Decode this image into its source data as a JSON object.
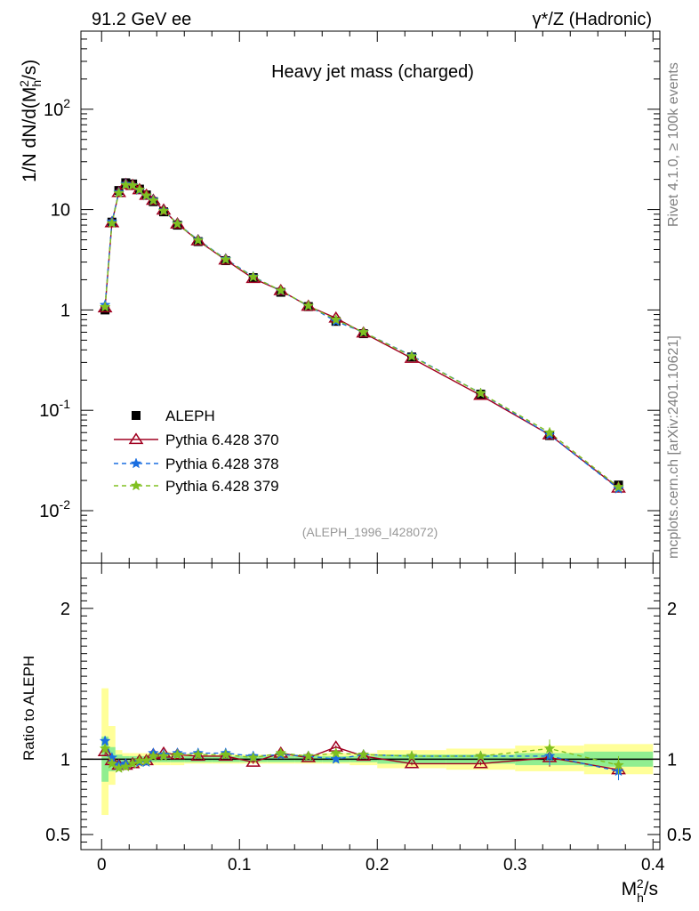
{
  "header": {
    "left": "91.2 GeV ee",
    "right": "γ*/Z (Hadronic)"
  },
  "side_labels": {
    "rivet": "Rivet 4.1.0, ≥ 100k events",
    "mcplots": "mcplots.cern.ch [arXiv:2401.10621]"
  },
  "colors": {
    "aleph": "#000000",
    "p370": "#a00020",
    "p378": "#1a6ee0",
    "p379": "#80c020",
    "band_yellow": "#ffff99",
    "band_green": "#90ee90"
  },
  "chart_data": {
    "type": "line",
    "title": "Heavy jet mass (charged)",
    "ylabel": "1/N  dN/d(M_h^2/s)",
    "xlabel": "M_h^2/s",
    "ratio_ylabel": "Ratio to ALEPH",
    "watermark": "(ALEPH_1996_I428072)",
    "xlim": [
      -0.015,
      0.405
    ],
    "ylim_log": [
      0.003,
      600
    ],
    "ratio_ylim": [
      0.4,
      2.3
    ],
    "x_ticks": [
      "0",
      "0.1",
      "0.2",
      "0.3",
      "0.4"
    ],
    "y_tick_labels": [
      "10^-2",
      "10^-1",
      "1",
      "10",
      "10^2"
    ],
    "ratio_tick_labels": [
      "0.5",
      "1",
      "2"
    ],
    "x": [
      0.0025,
      0.0075,
      0.0125,
      0.0175,
      0.0225,
      0.0275,
      0.0325,
      0.0375,
      0.045,
      0.055,
      0.07,
      0.09,
      0.11,
      0.13,
      0.15,
      0.17,
      0.19,
      0.225,
      0.275,
      0.325,
      0.375
    ],
    "series": [
      {
        "name": "ALEPH",
        "style": "data",
        "values": [
          1.0,
          7.5,
          15.5,
          18.5,
          18.0,
          16.0,
          14.0,
          12.0,
          9.5,
          7.0,
          4.8,
          3.1,
          2.1,
          1.5,
          1.08,
          0.77,
          0.58,
          0.34,
          0.145,
          0.056,
          0.018
        ]
      },
      {
        "name": "Pythia 6.428 370",
        "style": "triangle",
        "values": [
          1.05,
          7.4,
          14.8,
          17.8,
          17.4,
          15.8,
          13.9,
          12.4,
          9.9,
          7.2,
          4.9,
          3.15,
          2.06,
          1.56,
          1.09,
          0.83,
          0.59,
          0.33,
          0.141,
          0.057,
          0.0168
        ]
      },
      {
        "name": "Pythia 6.428 378",
        "style": "star-dashed",
        "values": [
          1.12,
          7.6,
          14.9,
          18.0,
          17.5,
          15.6,
          13.7,
          12.5,
          9.8,
          7.25,
          5.0,
          3.22,
          2.15,
          1.55,
          1.1,
          0.77,
          0.6,
          0.35,
          0.148,
          0.057,
          0.0165
        ]
      },
      {
        "name": "Pythia 6.428 379",
        "style": "star-dashed",
        "values": [
          1.07,
          7.3,
          14.6,
          17.6,
          17.4,
          15.8,
          13.8,
          12.3,
          9.7,
          7.2,
          4.95,
          3.18,
          2.13,
          1.56,
          1.1,
          0.8,
          0.6,
          0.345,
          0.148,
          0.06,
          0.0172
        ]
      }
    ],
    "ratio_series": [
      {
        "name": "Pythia 6.428 370",
        "values": [
          1.05,
          0.99,
          0.96,
          0.96,
          0.97,
          0.99,
          0.99,
          1.03,
          1.04,
          1.03,
          1.02,
          1.02,
          0.98,
          1.04,
          1.01,
          1.08,
          1.02,
          0.97,
          0.97,
          1.01,
          0.93
        ]
      },
      {
        "name": "Pythia 6.428 378",
        "values": [
          1.12,
          1.01,
          0.96,
          0.97,
          0.97,
          0.98,
          0.98,
          1.04,
          1.03,
          1.04,
          1.04,
          1.04,
          1.02,
          1.03,
          1.02,
          1.0,
          1.03,
          1.02,
          1.02,
          1.02,
          0.92
        ]
      },
      {
        "name": "Pythia 6.428 379",
        "values": [
          1.07,
          0.97,
          0.94,
          0.95,
          0.97,
          0.99,
          0.99,
          1.02,
          1.02,
          1.03,
          1.03,
          1.03,
          1.01,
          1.04,
          1.02,
          1.04,
          1.03,
          1.02,
          1.02,
          1.07,
          0.96
        ]
      }
    ],
    "band": {
      "x_edges": [
        0.0,
        0.005,
        0.01,
        0.015,
        0.02,
        0.025,
        0.03,
        0.035,
        0.04,
        0.05,
        0.06,
        0.08,
        0.1,
        0.12,
        0.14,
        0.16,
        0.18,
        0.2,
        0.25,
        0.3,
        0.35,
        0.4
      ],
      "yellow_lo": [
        0.63,
        0.83,
        0.93,
        0.95,
        0.95,
        0.95,
        0.96,
        0.96,
        0.96,
        0.96,
        0.97,
        0.97,
        0.97,
        0.97,
        0.97,
        0.97,
        0.96,
        0.94,
        0.93,
        0.92,
        0.9
      ],
      "yellow_hi": [
        1.47,
        1.22,
        1.06,
        1.04,
        1.04,
        1.04,
        1.04,
        1.04,
        1.05,
        1.04,
        1.03,
        1.03,
        1.03,
        1.03,
        1.03,
        1.04,
        1.04,
        1.06,
        1.07,
        1.09,
        1.1
      ],
      "green_lo": [
        0.85,
        0.92,
        0.97,
        0.98,
        0.98,
        0.98,
        0.98,
        0.98,
        0.98,
        0.98,
        0.98,
        0.98,
        0.98,
        0.98,
        0.98,
        0.98,
        0.98,
        0.97,
        0.97,
        0.96,
        0.95
      ],
      "green_hi": [
        1.15,
        1.08,
        1.03,
        1.02,
        1.02,
        1.02,
        1.02,
        1.02,
        1.02,
        1.02,
        1.02,
        1.02,
        1.02,
        1.02,
        1.02,
        1.02,
        1.02,
        1.03,
        1.03,
        1.04,
        1.05
      ]
    }
  }
}
